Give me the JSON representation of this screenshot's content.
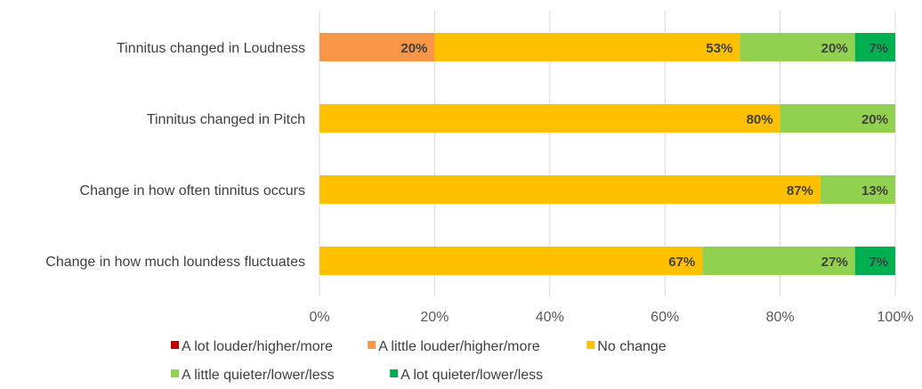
{
  "chart_data": {
    "type": "bar",
    "orientation": "horizontal",
    "stacked": true,
    "categories": [
      "Tinnitus changed in Loudness",
      "Tinnitus changed in Pitch",
      "Change in how often tinnitus occurs",
      "Change in how much loundess fluctuates"
    ],
    "series": [
      {
        "name": "A lot louder/higher/more",
        "color": "#C00000",
        "values": [
          0,
          0,
          0,
          0
        ],
        "labels": [
          "",
          "",
          "",
          ""
        ]
      },
      {
        "name": "A little louder/higher/more",
        "color": "#F79646",
        "values": [
          20,
          0,
          0,
          0
        ],
        "labels": [
          "20%",
          "",
          "",
          ""
        ]
      },
      {
        "name": "No change",
        "color": "#FFC000",
        "values": [
          53,
          80,
          87,
          66.5
        ],
        "labels": [
          "53%",
          "80%",
          "87%",
          "67%"
        ]
      },
      {
        "name": "A little quieter/lower/less",
        "color": "#92D050",
        "values": [
          20,
          20,
          13,
          26.5
        ],
        "labels": [
          "20%",
          "20%",
          "13%",
          "27%"
        ]
      },
      {
        "name": "A lot quieter/lower/less",
        "color": "#00B050",
        "values": [
          7,
          0,
          0,
          7
        ],
        "labels": [
          "7%",
          "",
          "",
          "7%"
        ]
      }
    ],
    "xlim": [
      0,
      100
    ],
    "xticks": [
      "0%",
      "20%",
      "40%",
      "60%",
      "80%",
      "100%"
    ],
    "grid": "vertical",
    "legend_position": "bottom"
  }
}
